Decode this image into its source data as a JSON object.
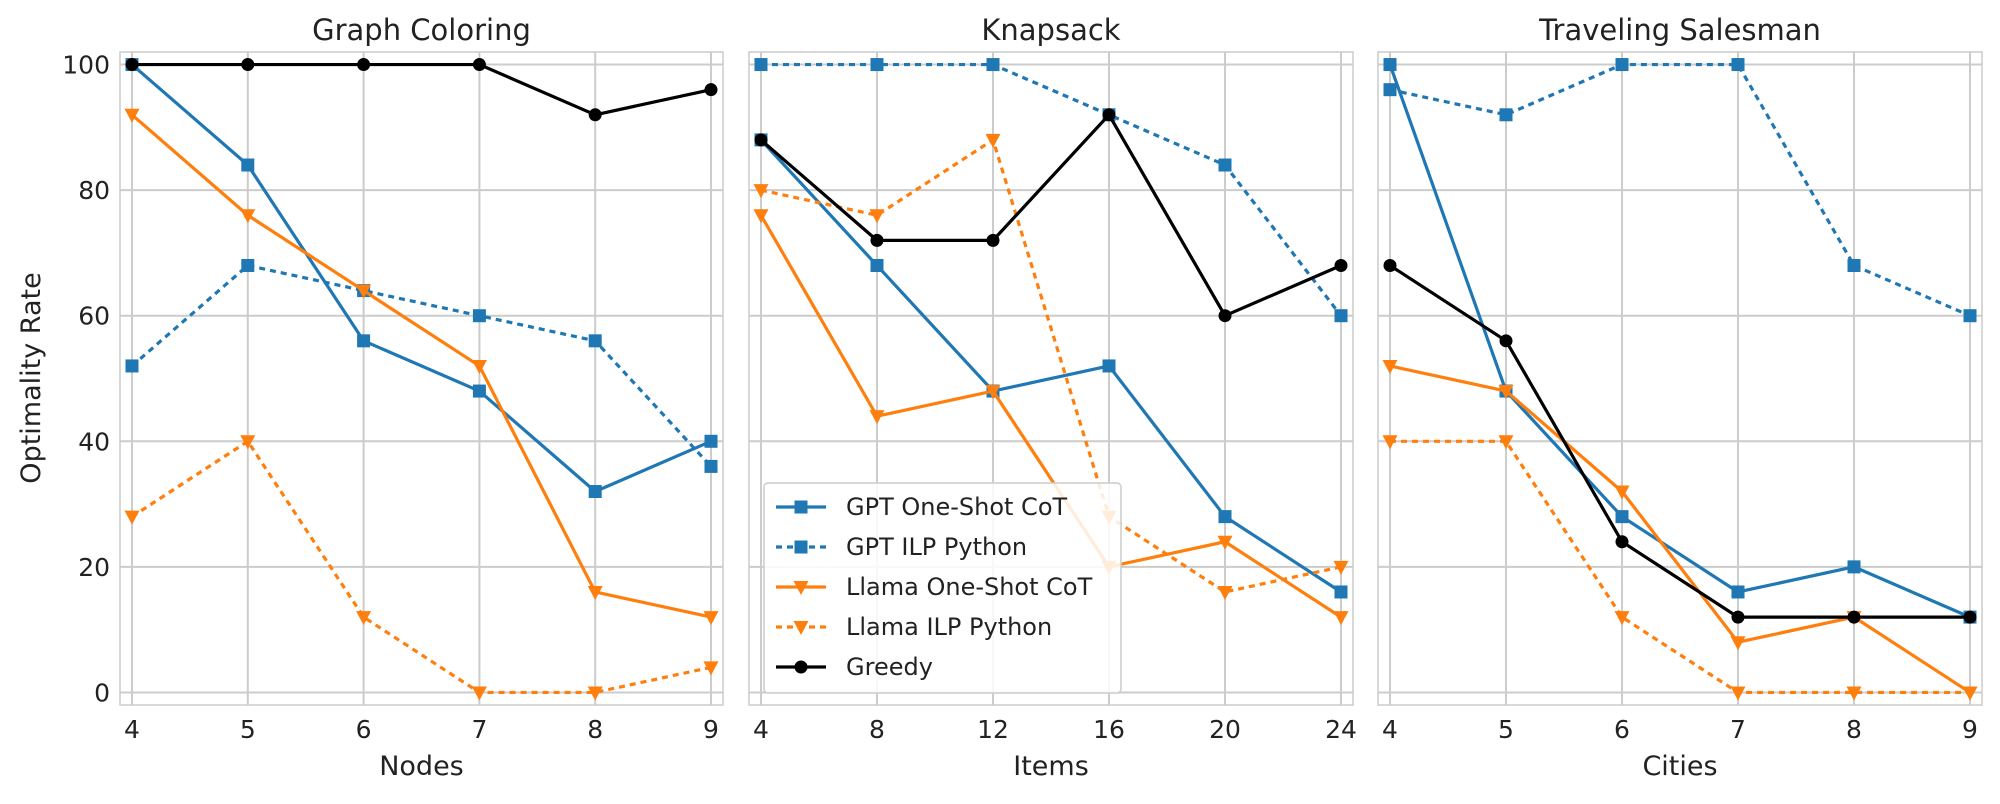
{
  "colors": {
    "gpt": "#1f77b4",
    "llama": "#ff7f0e",
    "greedy": "#000000",
    "grid": "#cccccc"
  },
  "chart_data": [
    {
      "type": "line",
      "title": "Graph Coloring",
      "xlabel": "Nodes",
      "ylabel": "Optimality Rate",
      "x": [
        4,
        5,
        6,
        7,
        8,
        9
      ],
      "xticks": [
        "4",
        "5",
        "6",
        "7",
        "8",
        "9"
      ],
      "yticks": [
        "0",
        "20",
        "40",
        "60",
        "80",
        "100"
      ],
      "ylim": [
        -2,
        102
      ],
      "grid": true,
      "series": [
        {
          "name": "GPT One-Shot CoT",
          "color": "#1f77b4",
          "dash": "solid",
          "marker": "square",
          "values": [
            100,
            84,
            56,
            48,
            32,
            40
          ]
        },
        {
          "name": "GPT ILP Python",
          "color": "#1f77b4",
          "dash": "dotted",
          "marker": "square",
          "values": [
            52,
            68,
            64,
            60,
            56,
            36
          ]
        },
        {
          "name": "Llama One-Shot CoT",
          "color": "#ff7f0e",
          "dash": "solid",
          "marker": "triangle-down",
          "values": [
            92,
            76,
            64,
            52,
            16,
            12
          ]
        },
        {
          "name": "Llama ILP Python",
          "color": "#ff7f0e",
          "dash": "dotted",
          "marker": "triangle-down",
          "values": [
            28,
            40,
            12,
            0,
            0,
            4
          ]
        },
        {
          "name": "Greedy",
          "color": "#000000",
          "dash": "solid",
          "marker": "circle",
          "values": [
            100,
            100,
            100,
            100,
            92,
            96
          ]
        }
      ]
    },
    {
      "type": "line",
      "title": "Knapsack",
      "xlabel": "Items",
      "ylabel": "",
      "x": [
        4,
        8,
        12,
        16,
        20,
        24
      ],
      "xticks": [
        "4",
        "8",
        "12",
        "16",
        "20",
        "24"
      ],
      "yticks": [],
      "ylim": [
        -2,
        102
      ],
      "grid": true,
      "legend": "lower-left",
      "series": [
        {
          "name": "GPT One-Shot CoT",
          "color": "#1f77b4",
          "dash": "solid",
          "marker": "square",
          "values": [
            88,
            68,
            48,
            52,
            28,
            16
          ]
        },
        {
          "name": "GPT ILP Python",
          "color": "#1f77b4",
          "dash": "dotted",
          "marker": "square",
          "values": [
            100,
            100,
            100,
            92,
            84,
            60
          ]
        },
        {
          "name": "Llama One-Shot CoT",
          "color": "#ff7f0e",
          "dash": "solid",
          "marker": "triangle-down",
          "values": [
            76,
            44,
            48,
            20,
            24,
            12
          ]
        },
        {
          "name": "Llama ILP Python",
          "color": "#ff7f0e",
          "dash": "dotted",
          "marker": "triangle-down",
          "values": [
            80,
            76,
            88,
            28,
            16,
            20
          ]
        },
        {
          "name": "Greedy",
          "color": "#000000",
          "dash": "solid",
          "marker": "circle",
          "values": [
            88,
            72,
            72,
            92,
            60,
            68
          ]
        }
      ]
    },
    {
      "type": "line",
      "title": "Traveling Salesman",
      "xlabel": "Cities",
      "ylabel": "",
      "x": [
        4,
        5,
        6,
        7,
        8,
        9
      ],
      "xticks": [
        "4",
        "5",
        "6",
        "7",
        "8",
        "9"
      ],
      "yticks": [],
      "ylim": [
        -2,
        102
      ],
      "grid": true,
      "series": [
        {
          "name": "GPT One-Shot CoT",
          "color": "#1f77b4",
          "dash": "solid",
          "marker": "square",
          "values": [
            100,
            48,
            28,
            16,
            20,
            12
          ]
        },
        {
          "name": "GPT ILP Python",
          "color": "#1f77b4",
          "dash": "dotted",
          "marker": "square",
          "values": [
            96,
            92,
            100,
            100,
            68,
            60
          ]
        },
        {
          "name": "Llama One-Shot CoT",
          "color": "#ff7f0e",
          "dash": "solid",
          "marker": "triangle-down",
          "values": [
            52,
            48,
            32,
            8,
            12,
            0
          ]
        },
        {
          "name": "Llama ILP Python",
          "color": "#ff7f0e",
          "dash": "dotted",
          "marker": "triangle-down",
          "values": [
            40,
            40,
            12,
            0,
            0,
            0
          ]
        },
        {
          "name": "Greedy",
          "color": "#000000",
          "dash": "solid",
          "marker": "circle",
          "values": [
            68,
            56,
            24,
            12,
            12,
            12
          ]
        }
      ]
    }
  ]
}
